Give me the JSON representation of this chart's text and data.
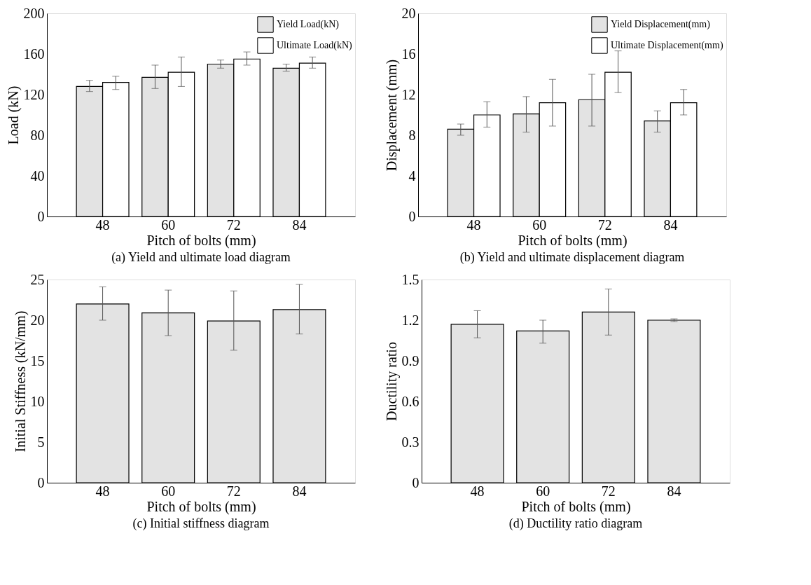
{
  "chart_data": [
    {
      "type": "bar",
      "title": "(a) Yield and ultimate load diagram",
      "xlabel": "Pitch of bolts (mm)",
      "ylabel": "Load (kN)",
      "categories": [
        "48",
        "60",
        "72",
        "84"
      ],
      "ylim": [
        0,
        200
      ],
      "yticks": [
        0,
        40,
        80,
        120,
        160,
        200
      ],
      "legend": "top right",
      "grid": false,
      "series": [
        {
          "name": "Yield Load(kN)",
          "color": "#e3e3e3",
          "values": [
            128,
            137,
            150,
            146
          ],
          "errors": [
            [
              123,
              134
            ],
            [
              126,
              149
            ],
            [
              146,
              154
            ],
            [
              143,
              150
            ]
          ]
        },
        {
          "name": "Ultimate Load(kN)",
          "color": "#ffffff",
          "values": [
            132,
            142,
            155,
            151
          ],
          "errors": [
            [
              125,
              138
            ],
            [
              128,
              157
            ],
            [
              149,
              162
            ],
            [
              146,
              157
            ]
          ]
        }
      ]
    },
    {
      "type": "bar",
      "title": "(b) Yield and ultimate displacement diagram",
      "xlabel": "Pitch of bolts (mm)",
      "ylabel": "Displacement (mm)",
      "categories": [
        "48",
        "60",
        "72",
        "84"
      ],
      "ylim": [
        0,
        20
      ],
      "yticks": [
        0,
        4,
        8,
        12,
        16,
        20
      ],
      "legend": "top right",
      "grid": false,
      "series": [
        {
          "name": "Yield Displacement(mm)",
          "color": "#e3e3e3",
          "values": [
            8.6,
            10.1,
            11.5,
            9.4
          ],
          "errors": [
            [
              8.0,
              9.1
            ],
            [
              8.3,
              11.8
            ],
            [
              8.9,
              14.0
            ],
            [
              8.3,
              10.4
            ]
          ]
        },
        {
          "name": "Ultimate Displacement(mm)",
          "color": "#ffffff",
          "values": [
            10.0,
            11.2,
            14.2,
            11.2
          ],
          "errors": [
            [
              8.8,
              11.3
            ],
            [
              8.9,
              13.5
            ],
            [
              12.2,
              16.3
            ],
            [
              10.0,
              12.5
            ]
          ]
        }
      ]
    },
    {
      "type": "bar",
      "title": "(c) Initial stiffness diagram",
      "xlabel": "Pitch of bolts (mm)",
      "ylabel": "Initial Stiffness (kN/mm)",
      "categories": [
        "48",
        "60",
        "72",
        "84"
      ],
      "ylim": [
        0,
        25
      ],
      "yticks": [
        0,
        5,
        10,
        15,
        20,
        25
      ],
      "grid": false,
      "color": "#e3e3e3",
      "values": [
        22.0,
        20.9,
        19.9,
        21.3
      ],
      "errors": [
        [
          20.0,
          24.1
        ],
        [
          18.1,
          23.7
        ],
        [
          16.3,
          23.6
        ],
        [
          18.3,
          24.4
        ]
      ]
    },
    {
      "type": "bar",
      "title": "(d) Ductility ratio diagram",
      "xlabel": "Pitch of bolts (mm)",
      "ylabel": "Ductility ratio",
      "categories": [
        "48",
        "60",
        "72",
        "84"
      ],
      "ylim": [
        0,
        1.5
      ],
      "yticks": [
        0,
        0.3,
        0.6,
        0.9,
        1.2,
        1.5
      ],
      "grid": false,
      "color": "#e3e3e3",
      "values": [
        1.17,
        1.12,
        1.26,
        1.2
      ],
      "errors": [
        [
          1.07,
          1.27
        ],
        [
          1.03,
          1.2
        ],
        [
          1.09,
          1.43
        ],
        [
          1.19,
          1.21
        ]
      ]
    }
  ]
}
